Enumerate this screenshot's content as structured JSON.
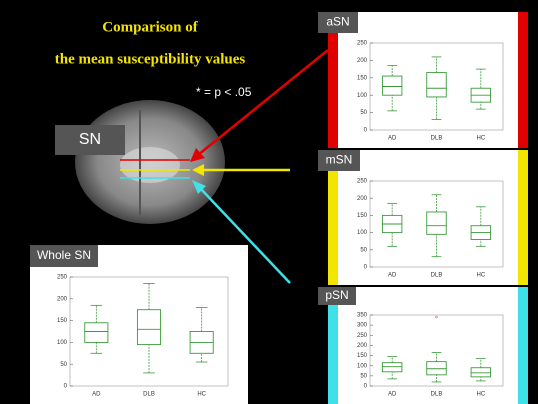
{
  "slide": {
    "title_line1": "Comparison of",
    "title_line2": "the mean susceptibility values",
    "note": "* = p < .05",
    "region_label": "SN"
  },
  "chart_data": [
    {
      "type": "box",
      "title": "aSN",
      "accent": "#e00000",
      "categories": [
        "AD",
        "DLB",
        "HC"
      ],
      "color": "#3a9a3a",
      "whisker_low": [
        55,
        30,
        60
      ],
      "q1": [
        100,
        95,
        80
      ],
      "median": [
        125,
        120,
        100
      ],
      "q3": [
        155,
        165,
        120
      ],
      "whisker_high": [
        185,
        210,
        175
      ],
      "ylim": [
        0,
        250
      ],
      "yticks": [
        0,
        50,
        100,
        150,
        200,
        250
      ]
    },
    {
      "type": "box",
      "title": "mSN",
      "accent": "#f2e600",
      "categories": [
        "AD",
        "DLB",
        "HC"
      ],
      "color": "#3a9a3a",
      "whisker_low": [
        60,
        30,
        60
      ],
      "q1": [
        100,
        95,
        80
      ],
      "median": [
        125,
        120,
        100
      ],
      "q3": [
        150,
        160,
        120
      ],
      "whisker_high": [
        185,
        210,
        175
      ],
      "ylim": [
        0,
        250
      ],
      "yticks": [
        0,
        50,
        100,
        150,
        200,
        250
      ]
    },
    {
      "type": "box",
      "title": "pSN",
      "accent": "#40e0e8",
      "categories": [
        "AD",
        "DLB",
        "HC"
      ],
      "color": "#3a9a3a",
      "whisker_low": [
        35,
        20,
        25
      ],
      "q1": [
        70,
        55,
        45
      ],
      "median": [
        95,
        85,
        65
      ],
      "q3": [
        115,
        120,
        90
      ],
      "whisker_high": [
        145,
        165,
        135
      ],
      "outliers": [
        [],
        [
          340
        ],
        []
      ],
      "ylim": [
        0,
        350
      ],
      "yticks": [
        0,
        50,
        100,
        150,
        200,
        250,
        300,
        350
      ]
    },
    {
      "type": "box",
      "title": "Whole SN",
      "categories": [
        "AD",
        "DLB",
        "HC"
      ],
      "color": "#3a9a3a",
      "whisker_low": [
        75,
        30,
        55
      ],
      "q1": [
        100,
        95,
        75
      ],
      "median": [
        125,
        130,
        100
      ],
      "q3": [
        145,
        175,
        125
      ],
      "whisker_high": [
        185,
        235,
        180
      ],
      "ylim": [
        0,
        250
      ],
      "yticks": [
        0,
        50,
        100,
        150,
        200,
        250
      ]
    }
  ]
}
